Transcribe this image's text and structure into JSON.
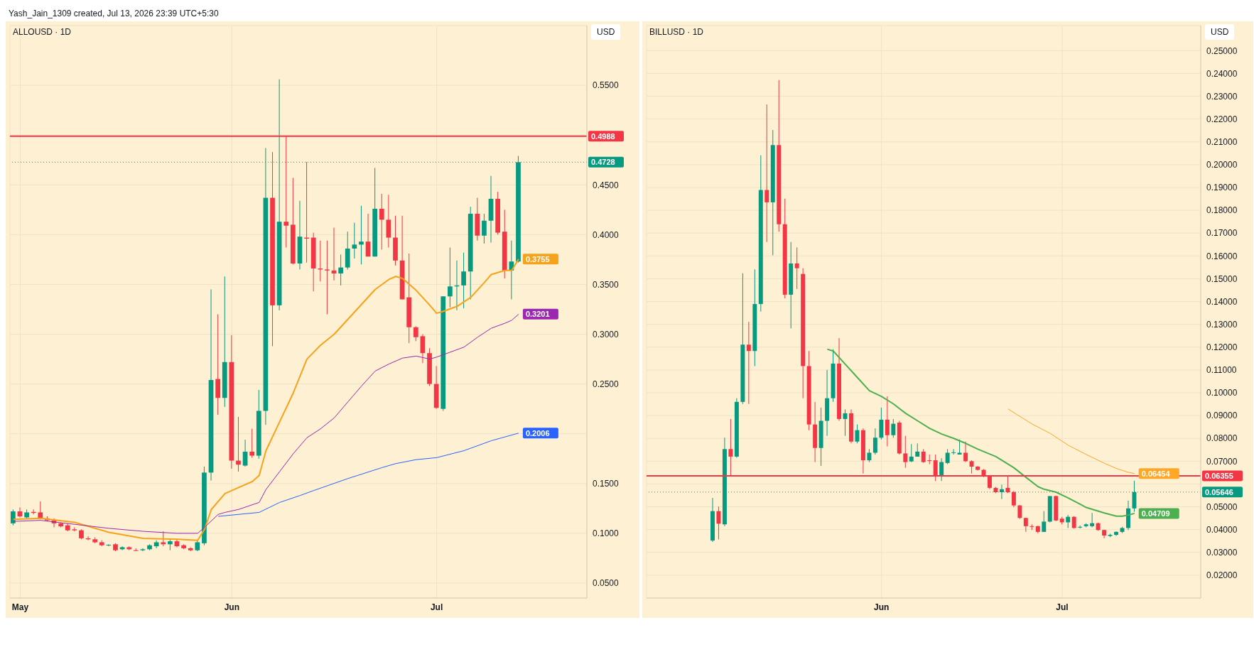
{
  "chart_data": [
    {
      "type": "candlestick",
      "title": "ALLOUSD · 1D",
      "ylabel": "USD",
      "annotations": [
        "Yash_Jain_1309 created, Jul 13, 2026 23:39 UTC+5:30"
      ],
      "grid": true,
      "xlim": [
        "2026-04-29T12:00",
        "2026-07-23"
      ],
      "xticks": [
        {
          "value": "2026-05-01",
          "label": "May"
        },
        {
          "value": "2026-06-01",
          "label": "Jun"
        },
        {
          "value": "2026-07-01",
          "label": "Jul"
        }
      ],
      "ylim": [
        0.035,
        0.61
      ],
      "yticks": [
        {
          "value": 0.05,
          "label": "0.0500"
        },
        {
          "value": 0.1,
          "label": "0.1000"
        },
        {
          "value": 0.15,
          "label": "0.1500"
        },
        {
          "value": 0.2,
          "label": null
        },
        {
          "value": 0.25,
          "label": "0.2500"
        },
        {
          "value": 0.3,
          "label": "0.3000"
        },
        {
          "value": 0.35,
          "label": "0.3500"
        },
        {
          "value": 0.4,
          "label": "0.4000"
        },
        {
          "value": 0.45,
          "label": "0.4500"
        },
        {
          "value": 0.5,
          "label": null
        },
        {
          "value": 0.55,
          "label": "0.5500"
        }
      ],
      "x": [
        "2026-04-30",
        "2026-05-01",
        "2026-05-02",
        "2026-05-03",
        "2026-05-04",
        "2026-05-05",
        "2026-05-06",
        "2026-05-07",
        "2026-05-08",
        "2026-05-09",
        "2026-05-10",
        "2026-05-11",
        "2026-05-12",
        "2026-05-13",
        "2026-05-14",
        "2026-05-15",
        "2026-05-16",
        "2026-05-17",
        "2026-05-18",
        "2026-05-19",
        "2026-05-20",
        "2026-05-21",
        "2026-05-22",
        "2026-05-23",
        "2026-05-24",
        "2026-05-25",
        "2026-05-26",
        "2026-05-27",
        "2026-05-28",
        "2026-05-29",
        "2026-05-30",
        "2026-05-31",
        "2026-06-01",
        "2026-06-02",
        "2026-06-03",
        "2026-06-04",
        "2026-06-05",
        "2026-06-06",
        "2026-06-07",
        "2026-06-08",
        "2026-06-09",
        "2026-06-10",
        "2026-06-11",
        "2026-06-12",
        "2026-06-13",
        "2026-06-14",
        "2026-06-15",
        "2026-06-16",
        "2026-06-17",
        "2026-06-18",
        "2026-06-19",
        "2026-06-20",
        "2026-06-21",
        "2026-06-22",
        "2026-06-23",
        "2026-06-24",
        "2026-06-25",
        "2026-06-26",
        "2026-06-27",
        "2026-06-28",
        "2026-06-29",
        "2026-06-30",
        "2026-07-01",
        "2026-07-02",
        "2026-07-03",
        "2026-07-04",
        "2026-07-05",
        "2026-07-06",
        "2026-07-07",
        "2026-07-08",
        "2026-07-09",
        "2026-07-10",
        "2026-07-11",
        "2026-07-12",
        "2026-07-13"
      ],
      "ohlc": [
        [
          0.11,
          0.124,
          0.108,
          0.122
        ],
        [
          0.122,
          0.126,
          0.116,
          0.117
        ],
        [
          0.116,
          0.124,
          0.115,
          0.121
        ],
        [
          0.1215,
          0.124,
          0.119,
          0.1205
        ],
        [
          0.121,
          0.132,
          0.114,
          0.115
        ],
        [
          0.115,
          0.117,
          0.112,
          0.113
        ],
        [
          0.113,
          0.115,
          0.106,
          0.11
        ],
        [
          0.11,
          0.111,
          0.106,
          0.107
        ],
        [
          0.108,
          0.11,
          0.102,
          0.103
        ],
        [
          0.104,
          0.106,
          0.102,
          0.103
        ],
        [
          0.103,
          0.104,
          0.094,
          0.095
        ],
        [
          0.095,
          0.097,
          0.093,
          0.094
        ],
        [
          0.094,
          0.096,
          0.09,
          0.091
        ],
        [
          0.091,
          0.093,
          0.087,
          0.088
        ],
        [
          0.088,
          0.089,
          0.087,
          0.0885
        ],
        [
          0.089,
          0.09,
          0.082,
          0.083
        ],
        [
          0.084,
          0.087,
          0.083,
          0.086
        ],
        [
          0.086,
          0.087,
          0.083,
          0.084
        ],
        [
          0.083,
          0.085,
          0.082,
          0.0825
        ],
        [
          0.083,
          0.085,
          0.082,
          0.084
        ],
        [
          0.084,
          0.089,
          0.083,
          0.088
        ],
        [
          0.087,
          0.093,
          0.085,
          0.091
        ],
        [
          0.091,
          0.102,
          0.087,
          0.089
        ],
        [
          0.089,
          0.094,
          0.083,
          0.092
        ],
        [
          0.092,
          0.094,
          0.086,
          0.087
        ],
        [
          0.088,
          0.089,
          0.084,
          0.085
        ],
        [
          0.085,
          0.086,
          0.082,
          0.083
        ],
        [
          0.083,
          0.093,
          0.082,
          0.091
        ],
        [
          0.09,
          0.167,
          0.088,
          0.161
        ],
        [
          0.161,
          0.345,
          0.153,
          0.254
        ],
        [
          0.255,
          0.32,
          0.219,
          0.236
        ],
        [
          0.236,
          0.358,
          0.227,
          0.272
        ],
        [
          0.272,
          0.299,
          0.165,
          0.173
        ],
        [
          0.173,
          0.217,
          0.162,
          0.169
        ],
        [
          0.168,
          0.194,
          0.167,
          0.182
        ],
        [
          0.182,
          0.205,
          0.176,
          0.178
        ],
        [
          0.178,
          0.244,
          0.175,
          0.223
        ],
        [
          0.223,
          0.487,
          0.209,
          0.437
        ],
        [
          0.437,
          0.483,
          0.288,
          0.329
        ],
        [
          0.329,
          0.556,
          0.324,
          0.413
        ],
        [
          0.413,
          0.499,
          0.387,
          0.409
        ],
        [
          0.41,
          0.457,
          0.37,
          0.371
        ],
        [
          0.371,
          0.434,
          0.365,
          0.398
        ],
        [
          0.397,
          0.473,
          0.372,
          0.396
        ],
        [
          0.397,
          0.402,
          0.343,
          0.366
        ],
        [
          0.366,
          0.394,
          0.353,
          0.365
        ],
        [
          0.365,
          0.394,
          0.32,
          0.364
        ],
        [
          0.364,
          0.407,
          0.354,
          0.361
        ],
        [
          0.361,
          0.38,
          0.349,
          0.367
        ],
        [
          0.367,
          0.403,
          0.365,
          0.386
        ],
        [
          0.386,
          0.412,
          0.376,
          0.39
        ],
        [
          0.39,
          0.429,
          0.37,
          0.393
        ],
        [
          0.393,
          0.421,
          0.378,
          0.378
        ],
        [
          0.378,
          0.467,
          0.378,
          0.426
        ],
        [
          0.426,
          0.441,
          0.385,
          0.415
        ],
        [
          0.415,
          0.44,
          0.387,
          0.397
        ],
        [
          0.397,
          0.419,
          0.369,
          0.374
        ],
        [
          0.374,
          0.419,
          0.335,
          0.335
        ],
        [
          0.337,
          0.381,
          0.291,
          0.307
        ],
        [
          0.307,
          0.308,
          0.293,
          0.297
        ],
        [
          0.298,
          0.3,
          0.271,
          0.281
        ],
        [
          0.281,
          0.286,
          0.248,
          0.25
        ],
        [
          0.25,
          0.268,
          0.225,
          0.226
        ],
        [
          0.225,
          0.338,
          0.223,
          0.338
        ],
        [
          0.338,
          0.387,
          0.327,
          0.348
        ],
        [
          0.348,
          0.374,
          0.324,
          0.349
        ],
        [
          0.349,
          0.382,
          0.326,
          0.363
        ],
        [
          0.363,
          0.428,
          0.335,
          0.421
        ],
        [
          0.421,
          0.437,
          0.394,
          0.399
        ],
        [
          0.399,
          0.421,
          0.391,
          0.414
        ],
        [
          0.414,
          0.459,
          0.392,
          0.436
        ],
        [
          0.436,
          0.443,
          0.4,
          0.402
        ],
        [
          0.403,
          0.425,
          0.356,
          0.364
        ],
        [
          0.364,
          0.394,
          0.335,
          0.373
        ],
        [
          0.373,
          0.479,
          0.372,
          0.4728
        ]
      ],
      "colors": [
        "#089981",
        "#f23645",
        "#089981",
        "#f23645",
        "#f23645",
        "#f23645",
        "#f23645",
        "#f23645",
        "#f23645",
        "#f23645",
        "#f23645",
        "#f23645",
        "#f23645",
        "#f23645",
        "#089981",
        "#f23645",
        "#089981",
        "#f23645",
        "#f23645",
        "#089981",
        "#089981",
        "#089981",
        "#f23645",
        "#089981",
        "#f23645",
        "#f23645",
        "#f23645",
        "#089981",
        "#089981",
        "#089981",
        "#f23645",
        "#089981",
        "#f23645",
        "#f23645",
        "#089981",
        "#f23645",
        "#089981",
        "#089981",
        "#f23645",
        "#089981",
        "#f23645",
        "#f23645",
        "#089981",
        "#f23645",
        "#f23645",
        "#f23645",
        "#f23645",
        "#f23645",
        "#089981",
        "#089981",
        "#089981",
        "#089981",
        "#f23645",
        "#089981",
        "#f23645",
        "#f23645",
        "#f23645",
        "#f23645",
        "#f23645",
        "#f23645",
        "#f23645",
        "#f23645",
        "#f23645",
        "#089981",
        "#089981",
        "#089981",
        "#089981",
        "#089981",
        "#f23645",
        "#089981",
        "#089981",
        "#f23645",
        "#f23645",
        "#089981",
        "#089981"
      ],
      "series": [
        {
          "type": "line",
          "color": "#f7a21b",
          "x": [
            "2026-04-30",
            "2026-05-04",
            "2026-05-09",
            "2026-05-14",
            "2026-05-19",
            "2026-05-24",
            "2026-05-27",
            "2026-05-28",
            "2026-05-29",
            "2026-05-31",
            "2026-06-02",
            "2026-06-04",
            "2026-06-05",
            "2026-06-06",
            "2026-06-08",
            "2026-06-10",
            "2026-06-12",
            "2026-06-14",
            "2026-06-16",
            "2026-06-18",
            "2026-06-20",
            "2026-06-22",
            "2026-06-24",
            "2026-06-25",
            "2026-06-26",
            "2026-06-28",
            "2026-06-30",
            "2026-07-01",
            "2026-07-02",
            "2026-07-04",
            "2026-07-06",
            "2026-07-08",
            "2026-07-09",
            "2026-07-11",
            "2026-07-12",
            "2026-07-13"
          ],
          "values": [
            0.114,
            0.115,
            0.111,
            0.101,
            0.095,
            0.094,
            0.093,
            0.104,
            0.124,
            0.14,
            0.146,
            0.152,
            0.158,
            0.183,
            0.212,
            0.241,
            0.275,
            0.289,
            0.3,
            0.315,
            0.33,
            0.345,
            0.355,
            0.358,
            0.356,
            0.344,
            0.329,
            0.321,
            0.323,
            0.328,
            0.337,
            0.352,
            0.36,
            0.364,
            0.364,
            0.3755
          ],
          "value_labels": [
            null,
            null,
            null,
            null,
            null,
            null,
            null,
            null,
            null,
            null,
            null,
            null,
            null,
            null,
            null,
            null,
            null,
            null,
            null,
            null,
            null,
            null,
            null,
            null,
            null,
            null,
            null,
            null,
            null,
            null,
            null,
            null,
            null,
            null,
            null,
            "0.3755"
          ]
        },
        {
          "type": "line",
          "color": "#9c27b0",
          "x": [
            "2026-04-30",
            "2026-05-04",
            "2026-05-09",
            "2026-05-14",
            "2026-05-19",
            "2026-05-24",
            "2026-05-27",
            "2026-05-28",
            "2026-05-30",
            "2026-05-31",
            "2026-06-02",
            "2026-06-05",
            "2026-06-06",
            "2026-06-08",
            "2026-06-10",
            "2026-06-12",
            "2026-06-14",
            "2026-06-16",
            "2026-06-18",
            "2026-06-20",
            "2026-06-22",
            "2026-06-24",
            "2026-06-26",
            "2026-06-28",
            "2026-06-30",
            "2026-07-01",
            "2026-07-03",
            "2026-07-05",
            "2026-07-07",
            "2026-07-09",
            "2026-07-11",
            "2026-07-12",
            "2026-07-13"
          ],
          "values": [
            0.112,
            0.113,
            0.109,
            0.105,
            0.102,
            0.1,
            0.1,
            0.106,
            0.119,
            0.121,
            0.124,
            0.131,
            0.144,
            0.162,
            0.18,
            0.196,
            0.205,
            0.216,
            0.232,
            0.248,
            0.263,
            0.27,
            0.276,
            0.278,
            0.275,
            0.277,
            0.282,
            0.287,
            0.297,
            0.306,
            0.311,
            0.314,
            0.3201
          ],
          "value_labels": [
            null,
            null,
            null,
            null,
            null,
            null,
            null,
            null,
            null,
            null,
            null,
            null,
            null,
            null,
            null,
            null,
            null,
            null,
            null,
            null,
            null,
            null,
            null,
            null,
            null,
            null,
            null,
            null,
            null,
            null,
            null,
            null,
            "0.3201"
          ]
        },
        {
          "type": "line",
          "color": "#2962ff",
          "x": [
            "2026-05-30",
            "2026-06-02",
            "2026-06-05",
            "2026-06-08",
            "2026-06-11",
            "2026-06-13",
            "2026-06-18",
            "2026-06-23",
            "2026-06-25",
            "2026-06-28",
            "2026-07-01",
            "2026-07-05",
            "2026-07-09",
            "2026-07-13"
          ],
          "values": [
            0.117,
            0.119,
            0.121,
            0.131,
            0.138,
            0.143,
            0.155,
            0.166,
            0.17,
            0.174,
            0.176,
            0.183,
            0.193,
            0.2006
          ],
          "value_labels": [
            null,
            null,
            null,
            null,
            null,
            null,
            null,
            null,
            null,
            null,
            null,
            null,
            null,
            "0.2006"
          ]
        }
      ],
      "ref_lines": [
        {
          "axis": "y",
          "value": 0.4988,
          "label": "0.4988",
          "color": "#f23645"
        },
        {
          "axis": "y",
          "value": 0.4728,
          "label": "0.4728",
          "color": "#089981",
          "line_style": "dotted"
        }
      ]
    },
    {
      "type": "candlestick",
      "title": "BILLUSD · 1D",
      "ylabel": "USD",
      "grid": true,
      "xlim": [
        "2026-04-23",
        "2026-07-24"
      ],
      "xticks": [
        {
          "value": "2026-06-01",
          "label": "Jun"
        },
        {
          "value": "2026-07-01",
          "label": "Jul"
        }
      ],
      "ylim": [
        0.01,
        0.261
      ],
      "yticks": [
        {
          "value": 0.02,
          "label": "0.02000"
        },
        {
          "value": 0.03,
          "label": "0.03000"
        },
        {
          "value": 0.04,
          "label": "0.04000"
        },
        {
          "value": 0.05,
          "label": "0.05000"
        },
        {
          "value": 0.06,
          "label": null
        },
        {
          "value": 0.07,
          "label": "0.07000"
        },
        {
          "value": 0.08,
          "label": "0.08000"
        },
        {
          "value": 0.09,
          "label": "0.09000"
        },
        {
          "value": 0.1,
          "label": "0.10000"
        },
        {
          "value": 0.11,
          "label": "0.11000"
        },
        {
          "value": 0.12,
          "label": "0.12000"
        },
        {
          "value": 0.13,
          "label": "0.13000"
        },
        {
          "value": 0.14,
          "label": "0.14000"
        },
        {
          "value": 0.15,
          "label": "0.15000"
        },
        {
          "value": 0.16,
          "label": "0.16000"
        },
        {
          "value": 0.17,
          "label": "0.17000"
        },
        {
          "value": 0.18,
          "label": "0.18000"
        },
        {
          "value": 0.19,
          "label": "0.19000"
        },
        {
          "value": 0.2,
          "label": "0.20000"
        },
        {
          "value": 0.21,
          "label": "0.21000"
        },
        {
          "value": 0.22,
          "label": "0.22000"
        },
        {
          "value": 0.23,
          "label": "0.23000"
        },
        {
          "value": 0.24,
          "label": "0.24000"
        },
        {
          "value": 0.25,
          "label": "0.25000"
        }
      ],
      "x": [
        "2026-05-04",
        "2026-05-05",
        "2026-05-06",
        "2026-05-07",
        "2026-05-08",
        "2026-05-09",
        "2026-05-10",
        "2026-05-11",
        "2026-05-12",
        "2026-05-13",
        "2026-05-14",
        "2026-05-15",
        "2026-05-16",
        "2026-05-17",
        "2026-05-18",
        "2026-05-19",
        "2026-05-20",
        "2026-05-21",
        "2026-05-22",
        "2026-05-23",
        "2026-05-24",
        "2026-05-25",
        "2026-05-26",
        "2026-05-27",
        "2026-05-28",
        "2026-05-29",
        "2026-05-30",
        "2026-05-31",
        "2026-06-01",
        "2026-06-02",
        "2026-06-03",
        "2026-06-04",
        "2026-06-05",
        "2026-06-06",
        "2026-06-07",
        "2026-06-08",
        "2026-06-09",
        "2026-06-10",
        "2026-06-11",
        "2026-06-12",
        "2026-06-13",
        "2026-06-14",
        "2026-06-15",
        "2026-06-16",
        "2026-06-17",
        "2026-06-18",
        "2026-06-19",
        "2026-06-20",
        "2026-06-21",
        "2026-06-22",
        "2026-06-23",
        "2026-06-24",
        "2026-06-25",
        "2026-06-26",
        "2026-06-27",
        "2026-06-28",
        "2026-06-29",
        "2026-06-30",
        "2026-07-01",
        "2026-07-02",
        "2026-07-03",
        "2026-07-04",
        "2026-07-05",
        "2026-07-06",
        "2026-07-07",
        "2026-07-08",
        "2026-07-09",
        "2026-07-10",
        "2026-07-11",
        "2026-07-12",
        "2026-07-13"
      ],
      "ohlc": [
        [
          0.0352,
          0.0539,
          0.0346,
          0.0481
        ],
        [
          0.0481,
          0.0501,
          0.0357,
          0.0426
        ],
        [
          0.0423,
          0.0803,
          0.0415,
          0.0753
        ],
        [
          0.0753,
          0.0885,
          0.0638,
          0.072
        ],
        [
          0.072,
          0.0976,
          0.0715,
          0.096
        ],
        [
          0.096,
          0.1524,
          0.0951,
          0.1211
        ],
        [
          0.1211,
          0.1311,
          0.0951,
          0.1183
        ],
        [
          0.1183,
          0.1541,
          0.1117,
          0.1389
        ],
        [
          0.1389,
          0.2041,
          0.1356,
          0.1889
        ],
        [
          0.1889,
          0.2264,
          0.1661,
          0.1835
        ],
        [
          0.1835,
          0.2152,
          0.1603,
          0.2086
        ],
        [
          0.2086,
          0.2371,
          0.1706,
          0.1739
        ],
        [
          0.1739,
          0.1851,
          0.1414,
          0.143
        ],
        [
          0.143,
          0.1661,
          0.1282,
          0.1567
        ],
        [
          0.1567,
          0.1637,
          0.1455,
          0.1546
        ],
        [
          0.1521,
          0.1546,
          0.0976,
          0.1117
        ],
        [
          0.1117,
          0.1183,
          0.0836,
          0.0861
        ],
        [
          0.0861,
          0.096,
          0.0696,
          0.0758
        ],
        [
          0.0758,
          0.0935,
          0.0679,
          0.0877
        ],
        [
          0.0877,
          0.11,
          0.0811,
          0.0976
        ],
        [
          0.0976,
          0.1191,
          0.096,
          0.1128
        ],
        [
          0.1128,
          0.124,
          0.0877,
          0.0885
        ],
        [
          0.0885,
          0.0927,
          0.0811,
          0.091
        ],
        [
          0.091,
          0.0927,
          0.0778,
          0.0786
        ],
        [
          0.0786,
          0.0861,
          0.0778,
          0.0836
        ],
        [
          0.0836,
          0.0844,
          0.0646,
          0.0704
        ],
        [
          0.0704,
          0.0753,
          0.0696,
          0.0737
        ],
        [
          0.0737,
          0.0844,
          0.0729,
          0.0803
        ],
        [
          0.0803,
          0.0935,
          0.0795,
          0.0882
        ],
        [
          0.0882,
          0.0984,
          0.0765,
          0.0814
        ],
        [
          0.0814,
          0.0885,
          0.0803,
          0.0864
        ],
        [
          0.0869,
          0.0877,
          0.0729,
          0.0734
        ],
        [
          0.0734,
          0.0811,
          0.0671,
          0.0696
        ],
        [
          0.0699,
          0.0775,
          0.0696,
          0.072
        ],
        [
          0.072,
          0.0778,
          0.072,
          0.0742
        ],
        [
          0.0742,
          0.0753,
          0.0693,
          0.0696
        ],
        [
          0.0704,
          0.0729,
          0.0687,
          0.0701
        ],
        [
          0.0704,
          0.0729,
          0.0613,
          0.0633
        ],
        [
          0.0633,
          0.0713,
          0.0613,
          0.0696
        ],
        [
          0.0692,
          0.0753,
          0.0687,
          0.0737
        ],
        [
          0.0737,
          0.0753,
          0.0729,
          0.0739
        ],
        [
          0.0729,
          0.0795,
          0.0729,
          0.0737
        ],
        [
          0.0737,
          0.0786,
          0.0696,
          0.07
        ],
        [
          0.07,
          0.0704,
          0.0646,
          0.0676
        ],
        [
          0.0676,
          0.0679,
          0.0659,
          0.0662
        ],
        [
          0.0662,
          0.0665,
          0.063,
          0.0634
        ],
        [
          0.0634,
          0.0637,
          0.0577,
          0.0583
        ],
        [
          0.0583,
          0.0587,
          0.056,
          0.0564
        ],
        [
          0.0564,
          0.0597,
          0.0534,
          0.0577
        ],
        [
          0.0583,
          0.0638,
          0.056,
          0.0564
        ],
        [
          0.0564,
          0.057,
          0.0498,
          0.0506
        ],
        [
          0.0506,
          0.0508,
          0.0447,
          0.0451
        ],
        [
          0.0451,
          0.0452,
          0.039,
          0.0415
        ],
        [
          0.0415,
          0.0423,
          0.0398,
          0.0412
        ],
        [
          0.0415,
          0.0417,
          0.0384,
          0.039
        ],
        [
          0.039,
          0.0481,
          0.039,
          0.0435
        ],
        [
          0.0435,
          0.0547,
          0.0432,
          0.0547
        ],
        [
          0.0547,
          0.0549,
          0.0437,
          0.044
        ],
        [
          0.0448,
          0.0456,
          0.0423,
          0.0432
        ],
        [
          0.0432,
          0.0464,
          0.0407,
          0.0456
        ],
        [
          0.0456,
          0.0459,
          0.0404,
          0.0407
        ],
        [
          0.041,
          0.0418,
          0.0405,
          0.0412
        ],
        [
          0.0415,
          0.0428,
          0.041,
          0.0423
        ],
        [
          0.0415,
          0.0473,
          0.041,
          0.0428
        ],
        [
          0.0428,
          0.0431,
          0.0395,
          0.0398
        ],
        [
          0.0398,
          0.04,
          0.0362,
          0.0374
        ],
        [
          0.0372,
          0.0382,
          0.0367,
          0.0377
        ],
        [
          0.0377,
          0.0392,
          0.0372,
          0.039
        ],
        [
          0.039,
          0.0412,
          0.0385,
          0.0407
        ],
        [
          0.0407,
          0.0527,
          0.0398,
          0.0493
        ],
        [
          0.0493,
          0.0614,
          0.0478,
          0.05646
        ]
      ],
      "colors": [
        "#089981",
        "#f23645",
        "#089981",
        "#f23645",
        "#089981",
        "#089981",
        "#f23645",
        "#089981",
        "#089981",
        "#f23645",
        "#089981",
        "#f23645",
        "#f23645",
        "#089981",
        "#f23645",
        "#f23645",
        "#f23645",
        "#f23645",
        "#089981",
        "#089981",
        "#089981",
        "#f23645",
        "#089981",
        "#f23645",
        "#089981",
        "#f23645",
        "#089981",
        "#089981",
        "#089981",
        "#f23645",
        "#089981",
        "#f23645",
        "#f23645",
        "#089981",
        "#089981",
        "#f23645",
        "#f23645",
        "#f23645",
        "#089981",
        "#089981",
        "#089981",
        "#089981",
        "#f23645",
        "#f23645",
        "#f23645",
        "#f23645",
        "#f23645",
        "#f23645",
        "#089981",
        "#f23645",
        "#f23645",
        "#f23645",
        "#f23645",
        "#f23645",
        "#f23645",
        "#089981",
        "#089981",
        "#f23645",
        "#f23645",
        "#089981",
        "#f23645",
        "#089981",
        "#089981",
        "#089981",
        "#f23645",
        "#f23645",
        "#089981",
        "#089981",
        "#089981",
        "#089981",
        "#089981"
      ],
      "series": [
        {
          "type": "line",
          "color": "#4caf50",
          "x": [
            "2026-05-23",
            "2026-05-24",
            "2026-05-26",
            "2026-05-28",
            "2026-05-30",
            "2026-06-01",
            "2026-06-03",
            "2026-06-05",
            "2026-06-07",
            "2026-06-09",
            "2026-06-11",
            "2026-06-13",
            "2026-06-15",
            "2026-06-17",
            "2026-06-20",
            "2026-06-23",
            "2026-06-25",
            "2026-06-27",
            "2026-06-28",
            "2026-06-30",
            "2026-07-02",
            "2026-07-05",
            "2026-07-08",
            "2026-07-10",
            "2026-07-11",
            "2026-07-12",
            "2026-07-13"
          ],
          "values": [
            0.1191,
            0.1183,
            0.1125,
            0.1067,
            0.1009,
            0.0984,
            0.0951,
            0.091,
            0.0877,
            0.0844,
            0.0819,
            0.08,
            0.0778,
            0.0753,
            0.072,
            0.0671,
            0.0629,
            0.0588,
            0.0577,
            0.0564,
            0.0539,
            0.0497,
            0.0473,
            0.0459,
            0.0459,
            0.0464,
            0.04709
          ],
          "value_labels": [
            null,
            null,
            null,
            null,
            null,
            null,
            null,
            null,
            null,
            null,
            null,
            null,
            null,
            null,
            null,
            null,
            null,
            null,
            null,
            null,
            null,
            null,
            null,
            null,
            null,
            null,
            "0.04709"
          ]
        },
        {
          "type": "line",
          "color": "#ffa726",
          "x": [
            "2026-06-22",
            "2026-06-26",
            "2026-06-29",
            "2026-07-02",
            "2026-07-05",
            "2026-07-08",
            "2026-07-10",
            "2026-07-12",
            "2026-07-13"
          ],
          "values": [
            0.0929,
            0.0863,
            0.0822,
            0.077,
            0.0729,
            0.0691,
            0.0668,
            0.0651,
            0.06454
          ],
          "value_labels": [
            null,
            null,
            null,
            null,
            null,
            null,
            null,
            null,
            "0.06454"
          ]
        }
      ],
      "ref_lines": [
        {
          "axis": "y",
          "value": 0.06355,
          "label": "0.06355",
          "color": "#f23645"
        },
        {
          "axis": "y",
          "value": 0.05646,
          "label": "0.05646",
          "color": "#089981",
          "line_style": "dotted"
        }
      ]
    }
  ]
}
